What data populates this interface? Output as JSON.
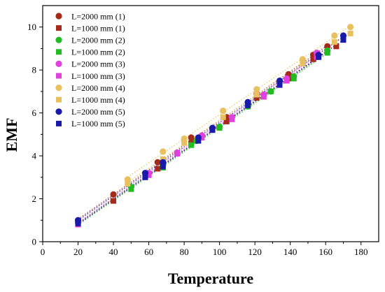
{
  "chart_data": {
    "type": "scatter",
    "title": "",
    "xlabel": "Temperature",
    "ylabel": "EMF",
    "xlim": [
      0,
      190
    ],
    "ylim": [
      0,
      11
    ],
    "x_ticks": [
      0,
      20,
      40,
      60,
      80,
      100,
      120,
      140,
      160,
      180
    ],
    "y_ticks": [
      0,
      2,
      4,
      6,
      8,
      10
    ],
    "grid": false,
    "legend_position": "top-left",
    "series": [
      {
        "name": "L=2000 mm (1)",
        "marker": "circle",
        "color": "#a52a1a",
        "x": [
          20,
          40,
          65,
          84,
          104,
          121,
          139,
          153,
          161
        ],
        "y": [
          0.95,
          2.2,
          3.7,
          4.85,
          5.8,
          6.9,
          7.8,
          8.7,
          9.1
        ]
      },
      {
        "name": "L=1000 mm (1)",
        "marker": "square",
        "color": "#a52a1a",
        "x": [
          20,
          40,
          65,
          84,
          104,
          121,
          139,
          153,
          166
        ],
        "y": [
          0.85,
          1.9,
          3.4,
          4.6,
          5.6,
          6.7,
          7.6,
          8.5,
          9.1
        ]
      },
      {
        "name": "L=2000 mm (2)",
        "marker": "circle",
        "color": "#22bb22",
        "x": [
          20,
          50,
          68,
          87,
          100,
          116,
          129,
          142,
          161
        ],
        "y": [
          0.9,
          2.55,
          3.55,
          4.7,
          5.35,
          6.3,
          7.0,
          7.7,
          8.9
        ]
      },
      {
        "name": "L=1000 mm (2)",
        "marker": "square",
        "color": "#22bb22",
        "x": [
          20,
          50,
          68,
          84,
          100,
          116,
          129,
          142,
          161
        ],
        "y": [
          0.8,
          2.45,
          3.45,
          4.5,
          5.3,
          6.3,
          7.0,
          7.6,
          8.8
        ]
      },
      {
        "name": "L=2000 mm (3)",
        "marker": "circle",
        "color": "#e040e0",
        "x": [
          20,
          60,
          76,
          90,
          107,
          125,
          138,
          155
        ],
        "y": [
          0.9,
          3.2,
          4.15,
          4.95,
          5.8,
          6.85,
          7.6,
          8.8
        ]
      },
      {
        "name": "L=1000 mm (3)",
        "marker": "square",
        "color": "#e040e0",
        "x": [
          20,
          60,
          76,
          90,
          107,
          125,
          138,
          155
        ],
        "y": [
          0.8,
          3.1,
          4.1,
          4.85,
          5.7,
          6.75,
          7.5,
          8.6
        ]
      },
      {
        "name": "L=2000 mm (4)",
        "marker": "circle",
        "color": "#e8c060",
        "x": [
          48,
          68,
          80,
          102,
          121,
          147,
          165,
          174
        ],
        "y": [
          2.9,
          4.2,
          4.8,
          6.1,
          7.1,
          8.5,
          9.6,
          10.0
        ]
      },
      {
        "name": "L=1000 mm (4)",
        "marker": "square",
        "color": "#e8c060",
        "x": [
          48,
          68,
          80,
          102,
          121,
          147,
          165,
          174
        ],
        "y": [
          2.7,
          3.85,
          4.6,
          5.8,
          6.85,
          8.3,
          9.3,
          9.7
        ]
      },
      {
        "name": "L=2000 mm (5)",
        "marker": "circle",
        "color": "#1a1aaa",
        "x": [
          20,
          58,
          68,
          88,
          96,
          116,
          134,
          156,
          170
        ],
        "y": [
          1.0,
          3.2,
          3.7,
          4.85,
          5.3,
          6.5,
          7.5,
          8.7,
          9.6
        ]
      },
      {
        "name": "L=1000 mm (5)",
        "marker": "square",
        "color": "#1a1aaa",
        "x": [
          20,
          58,
          68,
          88,
          96,
          116,
          134,
          156,
          170
        ],
        "y": [
          0.85,
          3.0,
          3.5,
          4.7,
          5.2,
          6.35,
          7.3,
          8.6,
          9.4
        ]
      }
    ]
  }
}
